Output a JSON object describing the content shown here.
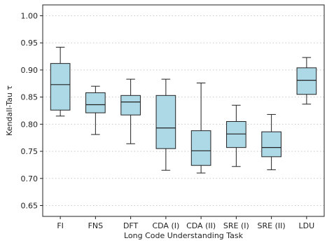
{
  "chart_data": {
    "type": "box",
    "title": "",
    "xlabel": "Long Code Understanding Task",
    "ylabel": "Kendall-Tau τ",
    "ylim": [
      0.63,
      1.02
    ],
    "yticks": [
      "0.65",
      "0.70",
      "0.75",
      "0.80",
      "0.85",
      "0.90",
      "0.95",
      "1.00"
    ],
    "grid": "horizontal dotted",
    "box_color": "#add8e6",
    "categories": [
      "FI",
      "FNS",
      "DFT",
      "CDA (I)",
      "CDA (II)",
      "SRE (I)",
      "SRE (II)",
      "LDU"
    ],
    "boxes": [
      {
        "whisker_low": 0.815,
        "q1": 0.826,
        "median": 0.873,
        "q3": 0.912,
        "whisker_high": 0.942
      },
      {
        "whisker_low": 0.781,
        "q1": 0.821,
        "median": 0.836,
        "q3": 0.858,
        "whisker_high": 0.87
      },
      {
        "whisker_low": 0.764,
        "q1": 0.817,
        "median": 0.841,
        "q3": 0.853,
        "whisker_high": 0.883
      },
      {
        "whisker_low": 0.715,
        "q1": 0.755,
        "median": 0.793,
        "q3": 0.853,
        "whisker_high": 0.883
      },
      {
        "whisker_low": 0.71,
        "q1": 0.724,
        "median": 0.751,
        "q3": 0.788,
        "whisker_high": 0.876
      },
      {
        "whisker_low": 0.722,
        "q1": 0.757,
        "median": 0.782,
        "q3": 0.805,
        "whisker_high": 0.835
      },
      {
        "whisker_low": 0.716,
        "q1": 0.74,
        "median": 0.757,
        "q3": 0.786,
        "whisker_high": 0.818
      },
      {
        "whisker_low": 0.837,
        "q1": 0.855,
        "median": 0.881,
        "q3": 0.904,
        "whisker_high": 0.923
      }
    ]
  }
}
